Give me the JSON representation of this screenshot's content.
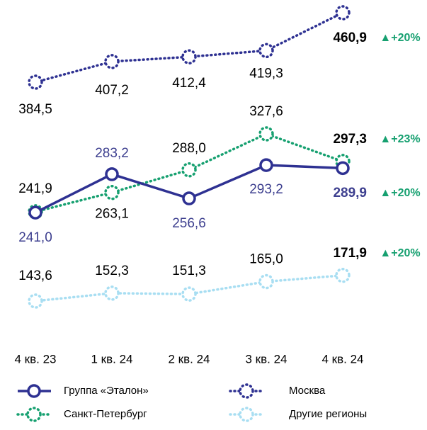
{
  "chart_data": {
    "type": "line",
    "categories": [
      "4 кв. 23",
      "1 кв. 24",
      "2 кв. 24",
      "3 кв. 24",
      "4 кв. 24"
    ],
    "series": [
      {
        "name": "Группа «Эталон»",
        "color": "#2e3192",
        "style": "solid",
        "values": [
          241.0,
          283.2,
          256.6,
          293.2,
          289.9
        ],
        "value_labels": [
          "241,0",
          "283,2",
          "256,6",
          "293,2",
          "289,9"
        ],
        "change": "▲+20%"
      },
      {
        "name": "Москва",
        "color": "#2e3192",
        "style": "dotted",
        "values": [
          384.5,
          407.2,
          412.4,
          419.3,
          460.9
        ],
        "value_labels": [
          "384,5",
          "407,2",
          "412,4",
          "419,3",
          "460,9"
        ],
        "change": "▲+20%"
      },
      {
        "name": "Санкт-Петербург",
        "color": "#16a070",
        "style": "dotted",
        "values": [
          241.9,
          263.1,
          288.0,
          327.6,
          297.3
        ],
        "value_labels": [
          "241,9",
          "263,1",
          "288,0",
          "327,6",
          "297,3"
        ],
        "change": "▲+23%"
      },
      {
        "name": "Другие регионы",
        "color": "#a8def2",
        "style": "dotted",
        "values": [
          143.6,
          152.3,
          151.3,
          165.0,
          171.9
        ],
        "value_labels": [
          "143,6",
          "152,3",
          "151,3",
          "165,0",
          "171,9"
        ],
        "change": "▲+20%"
      }
    ],
    "change_color": "#16a070"
  }
}
